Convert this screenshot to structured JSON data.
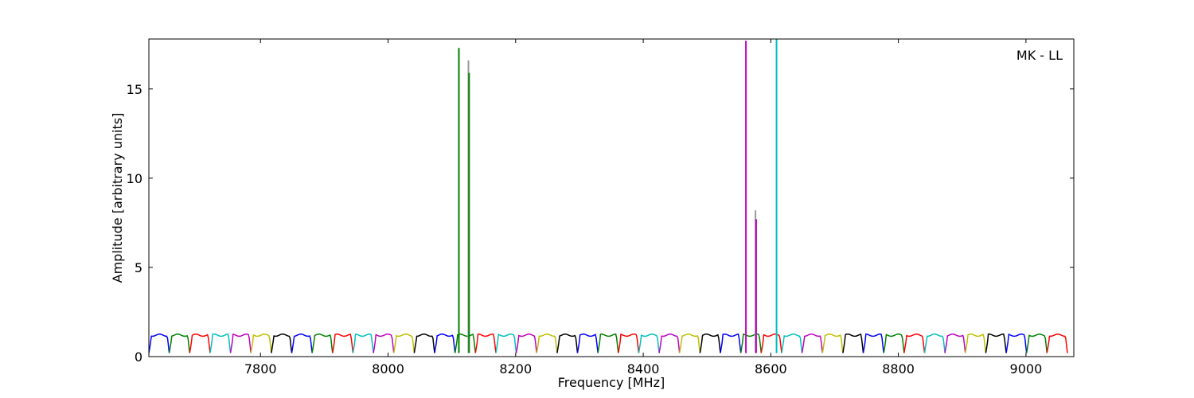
{
  "chart_data": {
    "type": "line",
    "title": "",
    "xlabel": "Frequency [MHz]",
    "ylabel": "Amplitude [arbitrary units]",
    "xlim": [
      7625,
      9075
    ],
    "ylim": [
      0,
      17.8
    ],
    "xticks": [
      7800,
      8000,
      8200,
      8400,
      8600,
      8800,
      9000
    ],
    "yticks": [
      0,
      5,
      10,
      15
    ],
    "grid": false,
    "annotation": "MK - LL",
    "channel": {
      "start": 7625,
      "width": 32,
      "bottom": 0.2,
      "top": 1.2,
      "colors": [
        "#0000ff",
        "#008000",
        "#ff0000",
        "#00bfbf",
        "#bf00bf",
        "#bfbf00",
        "#000000"
      ],
      "count": 45
    },
    "spikes": [
      {
        "x": 8111,
        "y": 17.3,
        "color": "#008000"
      },
      {
        "x": 8126,
        "y": 16.6,
        "color": "#999999"
      },
      {
        "x": 8127,
        "y": 15.9,
        "color": "#008000"
      },
      {
        "x": 8561,
        "y": 17.7,
        "color": "#bf00bf"
      },
      {
        "x": 8576,
        "y": 8.2,
        "color": "#999999"
      },
      {
        "x": 8577,
        "y": 7.7,
        "color": "#bf00bf"
      },
      {
        "x": 8609,
        "y": 17.8,
        "color": "#00bfbf"
      }
    ]
  }
}
